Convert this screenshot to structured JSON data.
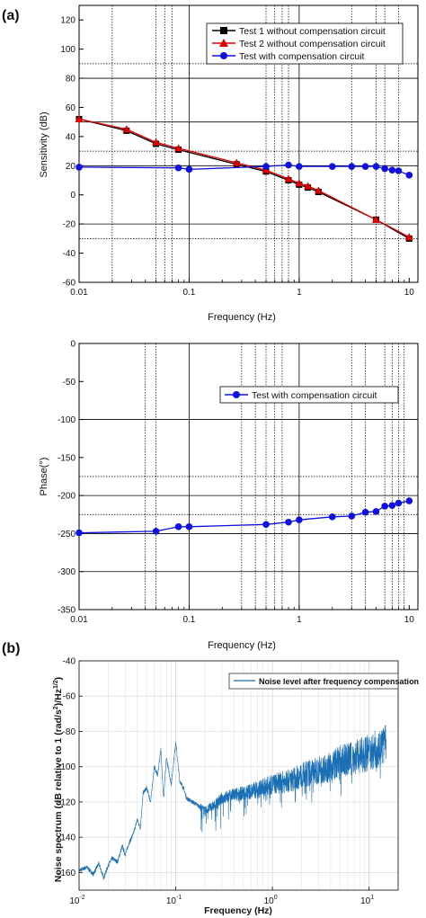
{
  "panel_labels": {
    "a": "(a)",
    "b": "(b)"
  },
  "chart_data": [
    {
      "type": "line",
      "xscale": "log",
      "xlim": [
        0.01,
        12
      ],
      "ylim": [
        -60,
        130
      ],
      "xlabel": "Frequency (Hz)",
      "ylabel": "Sensitivity (dB)",
      "xticks": [
        {
          "v": 0.01,
          "label": "0.01"
        },
        {
          "v": 0.1,
          "label": "0.1"
        },
        {
          "v": 1,
          "label": "1"
        },
        {
          "v": 10,
          "label": "10"
        }
      ],
      "yticks": [
        -60,
        -40,
        -20,
        0,
        20,
        40,
        60,
        80,
        100,
        120
      ],
      "grid_solid_y": [
        80,
        50,
        20,
        -20
      ],
      "grid_dotted_y": [
        90,
        30,
        -30
      ],
      "grid_solid_x": [
        0.1,
        1
      ],
      "grid_dotted_x": [
        0.02,
        0.05,
        0.06,
        0.07,
        0.5,
        0.6,
        0.7,
        0.8,
        3,
        5,
        6,
        8
      ],
      "legend_position": "top-right",
      "series": [
        {
          "name": "Test 1 without compensation circuit",
          "color": "#000000",
          "marker": "square",
          "x": [
            0.01,
            0.027,
            0.05,
            0.08,
            0.27,
            0.5,
            0.8,
            1.0,
            1.2,
            1.5,
            5,
            10
          ],
          "y": [
            52,
            44,
            35,
            31,
            21,
            16,
            10,
            7,
            5,
            2,
            -17,
            -30
          ]
        },
        {
          "name": "Test 2 without compensation circuit",
          "color": "#e00000",
          "marker": "triangle",
          "x": [
            0.01,
            0.027,
            0.05,
            0.08,
            0.27,
            0.5,
            0.8,
            1.0,
            1.2,
            1.5,
            5,
            10
          ],
          "y": [
            52,
            45,
            36,
            32,
            22,
            17,
            11,
            8,
            6,
            3,
            -17,
            -29
          ]
        },
        {
          "name": "Test with compensation circuit",
          "color": "#1010e0",
          "marker": "circle",
          "x": [
            0.01,
            0.08,
            0.1,
            0.5,
            0.8,
            1.0,
            2,
            3,
            4,
            5,
            6,
            7,
            8,
            10
          ],
          "y": [
            19,
            18.5,
            17.5,
            19.5,
            20.5,
            19.5,
            19.5,
            19.5,
            19.5,
            19.5,
            18,
            17,
            16.5,
            13.5
          ]
        }
      ]
    },
    {
      "type": "line",
      "xscale": "log",
      "xlim": [
        0.01,
        12
      ],
      "ylim": [
        -350,
        0
      ],
      "xlabel": "Frequency (Hz)",
      "ylabel": "Phase(°)",
      "xticks": [
        {
          "v": 0.01,
          "label": "0.01"
        },
        {
          "v": 0.1,
          "label": "0.1"
        },
        {
          "v": 1,
          "label": "1"
        },
        {
          "v": 10,
          "label": "10"
        }
      ],
      "yticks": [
        -350,
        -300,
        -250,
        -200,
        -150,
        -100,
        -50,
        0
      ],
      "grid_solid_y": [
        -100,
        -200,
        -250,
        -300
      ],
      "grid_dotted_y": [
        -175,
        -225
      ],
      "grid_solid_x": [
        0.1,
        1
      ],
      "grid_dotted_x": [
        0.04,
        0.05,
        0.3,
        0.4,
        0.5,
        0.6,
        0.7,
        3,
        4,
        6,
        7,
        8,
        9
      ],
      "legend_position": "top-right",
      "series": [
        {
          "name": "Test with compensation circuit",
          "color": "#1010e0",
          "marker": "circle",
          "x": [
            0.01,
            0.05,
            0.08,
            0.1,
            0.5,
            0.8,
            1.0,
            2,
            3,
            4,
            5,
            6,
            7,
            8,
            10
          ],
          "y": [
            -249,
            -247,
            -241,
            -241,
            -238,
            -235,
            -232,
            -228,
            -227,
            -222,
            -221,
            -214,
            -213,
            -210,
            -207
          ]
        }
      ]
    },
    {
      "type": "line",
      "xscale": "log",
      "xlim": [
        0.01,
        20
      ],
      "ylim": [
        -170,
        -40
      ],
      "xlabel": "Frequency (Hz)",
      "ylabel": "Noise spectrum (dB relative to 1 (rad/s²)/Hz½)",
      "ylabel_main": "Noise spectrum (dB relative to 1 (rad/s",
      "ylabel_sup1": "2",
      "ylabel_mid": ")/Hz",
      "ylabel_sup2": "1/2",
      "ylabel_end": ")",
      "xticks": [
        {
          "v": 0.01,
          "label": "10",
          "exp": "-2"
        },
        {
          "v": 0.1,
          "label": "10",
          "exp": "-1"
        },
        {
          "v": 1,
          "label": "10",
          "exp": "0"
        },
        {
          "v": 10,
          "label": "10",
          "exp": "1"
        }
      ],
      "yticks": [
        -160,
        -140,
        -120,
        -100,
        -80,
        -60,
        -40
      ],
      "grid": true,
      "legend_position": "top-right",
      "series": [
        {
          "name": "Noise level after frequency compensation",
          "color": "#1a6fb5",
          "trend_x": [
            0.01,
            0.012,
            0.014,
            0.016,
            0.018,
            0.02,
            0.022,
            0.025,
            0.028,
            0.03,
            0.033,
            0.036,
            0.04,
            0.043,
            0.046,
            0.05,
            0.055,
            0.06,
            0.065,
            0.07,
            0.075,
            0.08,
            0.09,
            0.1,
            0.11,
            0.12,
            0.13,
            0.15,
            0.17,
            0.2,
            0.25,
            0.3,
            0.4,
            0.5,
            0.7,
            1,
            1.5,
            2,
            3,
            4,
            5,
            7,
            10,
            12,
            15
          ],
          "trend_y": [
            -159,
            -157,
            -161,
            -155,
            -163,
            -156,
            -152,
            -154,
            -145,
            -150,
            -143,
            -139,
            -130,
            -135,
            -115,
            -112,
            -120,
            -100,
            -105,
            -90,
            -118,
            -95,
            -110,
            -86,
            -108,
            -112,
            -118,
            -120,
            -122,
            -125,
            -122,
            -118,
            -116,
            -115,
            -113,
            -110,
            -108,
            -105,
            -102,
            -100,
            -97,
            -95,
            -92,
            -90,
            -87
          ]
        }
      ]
    }
  ]
}
